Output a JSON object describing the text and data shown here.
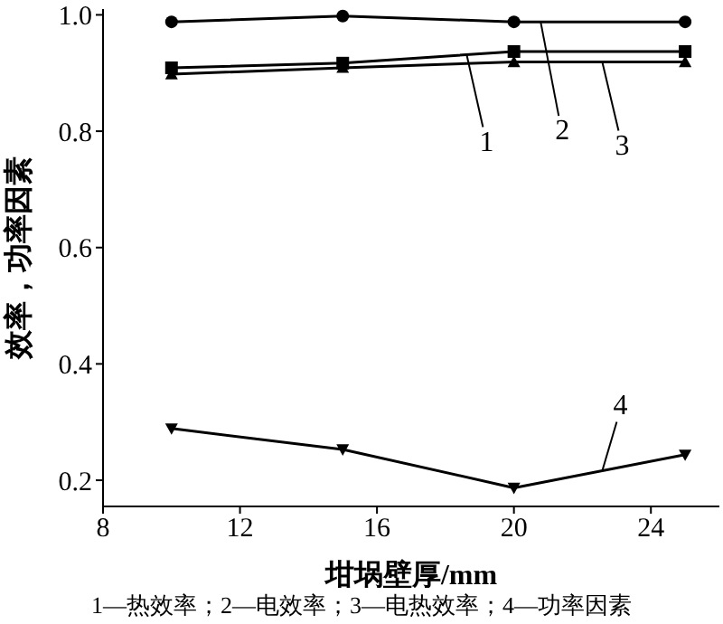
{
  "chart_data": {
    "type": "line",
    "xlabel": "坩埚壁厚/mm",
    "ylabel": "效率，功率因素",
    "x": [
      10,
      15,
      20,
      25
    ],
    "series": [
      {
        "name": "1",
        "color": "#000000",
        "marker": "square",
        "values": [
          0.909,
          0.917,
          0.937,
          0.937
        ]
      },
      {
        "name": "2",
        "color": "#000000",
        "marker": "circle",
        "values": [
          0.988,
          0.998,
          0.988,
          0.988
        ]
      },
      {
        "name": "3",
        "color": "#000000",
        "marker": "triangle",
        "values": [
          0.898,
          0.909,
          0.919,
          0.919
        ]
      },
      {
        "name": "4",
        "color": "#000000",
        "marker": "triangle-down",
        "values": [
          0.289,
          0.253,
          0.187,
          0.244
        ]
      }
    ],
    "xlim": [
      8,
      26
    ],
    "xticks": [
      8,
      12,
      16,
      20,
      24
    ],
    "ylim": [
      0.155,
      1.01
    ],
    "yticks": [
      0.2,
      0.4,
      0.6,
      0.8,
      {
        "value": 1,
        "label": "1.0"
      }
    ],
    "grid": false,
    "line_style": "solid",
    "annotations": [
      "1—热效率；2—电效率；3—电热效率；4—功率因素"
    ]
  }
}
